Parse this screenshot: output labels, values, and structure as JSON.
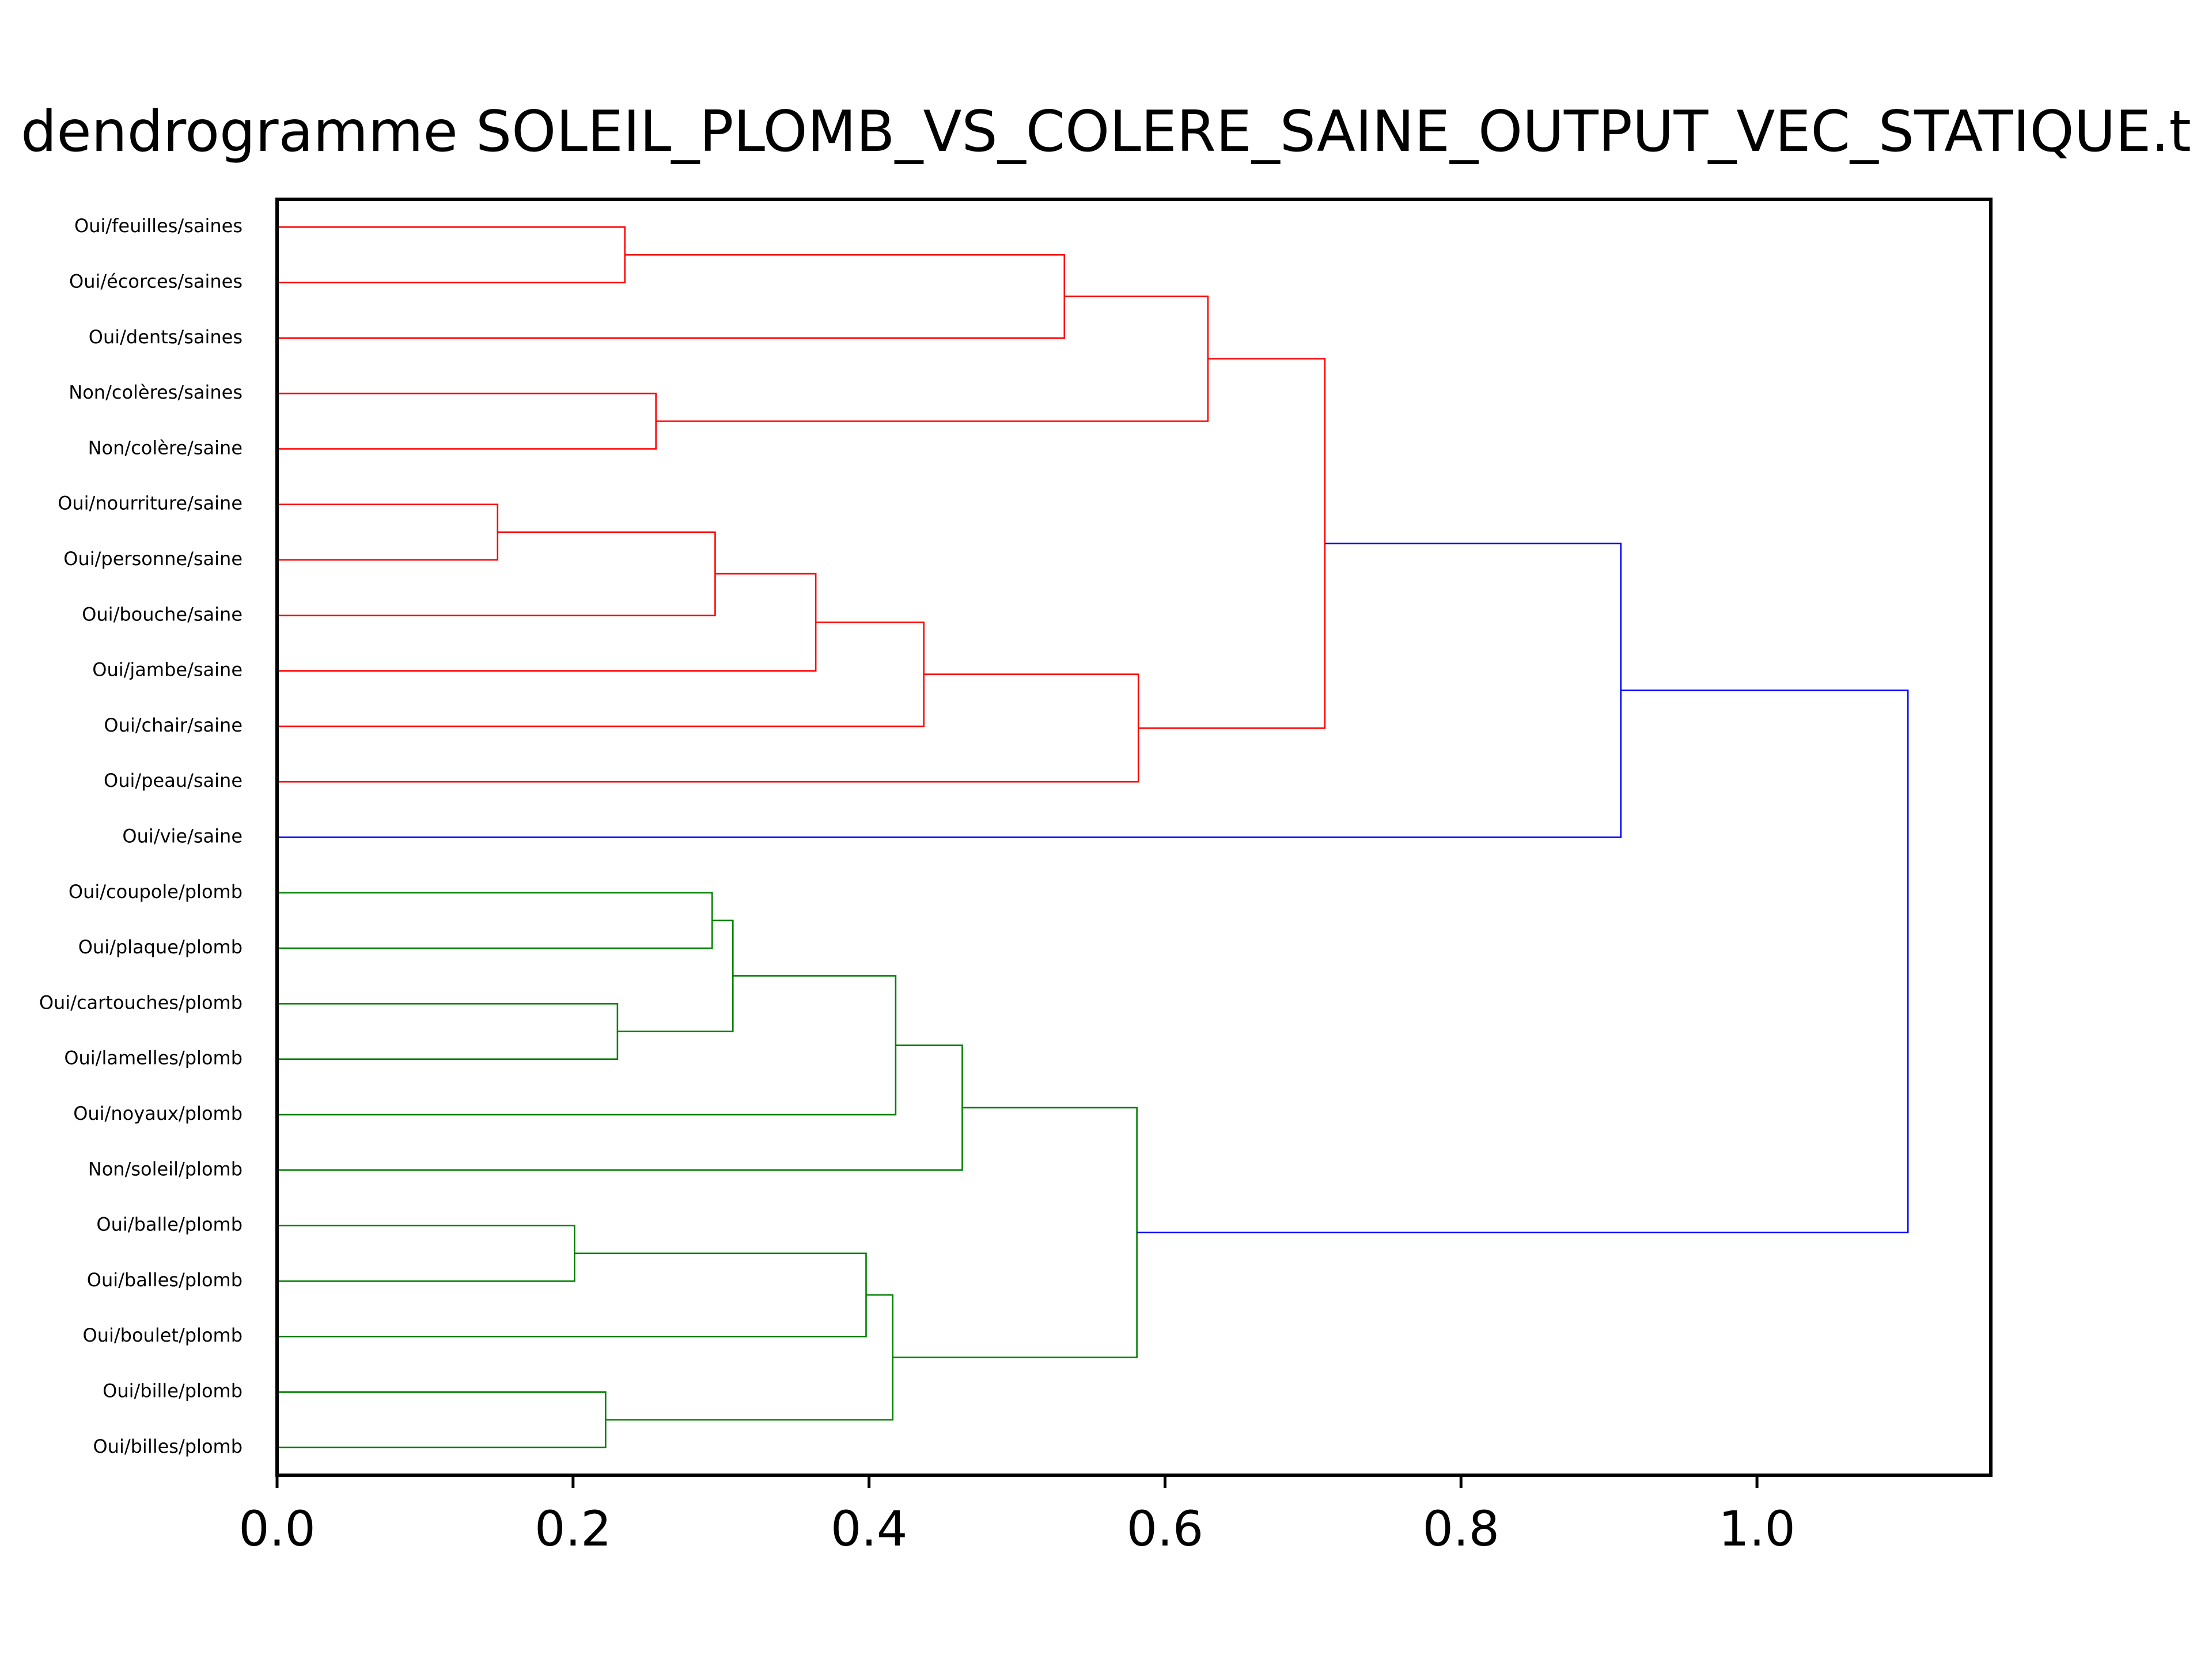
{
  "chart_data": {
    "type": "dendrogram",
    "title": "dendrogramme SOLEIL_PLOMB_VS_COLERE_SAINE_OUTPUT_VEC_STATIQUE.t",
    "orientation": "horizontal",
    "xlim": [
      0.0,
      1.158
    ],
    "x_ticks": [
      0.0,
      0.2,
      0.4,
      0.6,
      0.8,
      1.0
    ],
    "x_tick_labels": [
      "0.0",
      "0.2",
      "0.4",
      "0.6",
      "0.8",
      "1.0"
    ],
    "leaves": [
      "Oui/feuilles/saines",
      "Oui/écorces/saines",
      "Oui/dents/saines",
      "Non/colères/saines",
      "Non/colère/saine",
      "Oui/nourriture/saine",
      "Oui/personne/saine",
      "Oui/bouche/saine",
      "Oui/jambe/saine",
      "Oui/chair/saine",
      "Oui/peau/saine",
      "Oui/vie/saine",
      "Oui/coupole/plomb",
      "Oui/plaque/plomb",
      "Oui/cartouches/plomb",
      "Oui/lamelles/plomb",
      "Oui/noyaux/plomb",
      "Non/soleil/plomb",
      "Oui/balle/plomb",
      "Oui/balles/plomb",
      "Oui/boulet/plomb",
      "Oui/bille/plomb",
      "Oui/billes/plomb"
    ],
    "colors": {
      "cluster_saine": "#ff0000",
      "cluster_plomb": "#008000",
      "above_threshold": "#0000ff"
    },
    "merges": [
      {
        "id": "m1",
        "left": 0,
        "right": 1,
        "height": 0.235,
        "color": "cluster_saine"
      },
      {
        "id": "m2",
        "left": "m1",
        "right": 2,
        "height": 0.532,
        "color": "cluster_saine"
      },
      {
        "id": "m3",
        "left": 3,
        "right": 4,
        "height": 0.256,
        "color": "cluster_saine"
      },
      {
        "id": "m4",
        "left": "m2",
        "right": "m3",
        "height": 0.629,
        "color": "cluster_saine"
      },
      {
        "id": "m5",
        "left": 5,
        "right": 6,
        "height": 0.149,
        "color": "cluster_saine"
      },
      {
        "id": "m6",
        "left": "m5",
        "right": 7,
        "height": 0.296,
        "color": "cluster_saine"
      },
      {
        "id": "m7",
        "left": "m6",
        "right": 8,
        "height": 0.364,
        "color": "cluster_saine"
      },
      {
        "id": "m8",
        "left": "m7",
        "right": 9,
        "height": 0.437,
        "color": "cluster_saine"
      },
      {
        "id": "m9",
        "left": "m8",
        "right": 10,
        "height": 0.582,
        "color": "cluster_saine"
      },
      {
        "id": "m10",
        "left": "m4",
        "right": "m9",
        "height": 0.708,
        "color": "cluster_saine"
      },
      {
        "id": "m11",
        "left": "m10",
        "right": 11,
        "height": 0.908,
        "color": "above_threshold"
      },
      {
        "id": "m12",
        "left": 12,
        "right": 13,
        "height": 0.294,
        "color": "cluster_plomb"
      },
      {
        "id": "m13",
        "left": 14,
        "right": 15,
        "height": 0.23,
        "color": "cluster_plomb"
      },
      {
        "id": "m14",
        "left": "m12",
        "right": "m13",
        "height": 0.308,
        "color": "cluster_plomb"
      },
      {
        "id": "m15",
        "left": "m14",
        "right": 16,
        "height": 0.418,
        "color": "cluster_plomb"
      },
      {
        "id": "m16",
        "left": "m15",
        "right": 17,
        "height": 0.463,
        "color": "cluster_plomb"
      },
      {
        "id": "m17",
        "left": 18,
        "right": 19,
        "height": 0.201,
        "color": "cluster_plomb"
      },
      {
        "id": "m18",
        "left": "m17",
        "right": 20,
        "height": 0.398,
        "color": "cluster_plomb"
      },
      {
        "id": "m19",
        "left": 21,
        "right": 22,
        "height": 0.222,
        "color": "cluster_plomb"
      },
      {
        "id": "m20",
        "left": "m18",
        "right": "m19",
        "height": 0.416,
        "color": "cluster_plomb"
      },
      {
        "id": "m21",
        "left": "m16",
        "right": "m20",
        "height": 0.581,
        "color": "cluster_plomb"
      },
      {
        "id": "m22",
        "left": "m11",
        "right": "m21",
        "height": 1.102,
        "color": "above_threshold"
      }
    ]
  }
}
